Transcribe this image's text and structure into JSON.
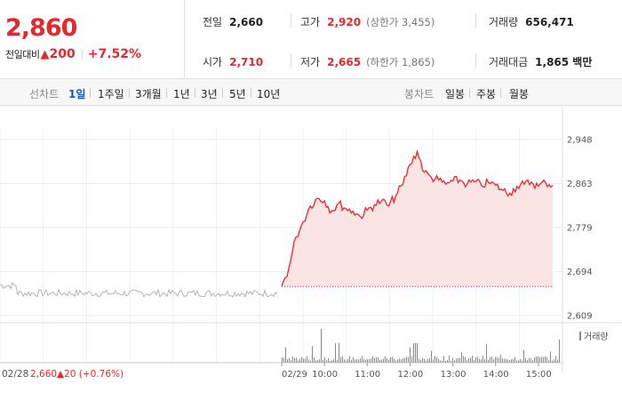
{
  "quote": {
    "price": "2,860",
    "change_label": "전일대비",
    "change_symbol": "▲",
    "change_amount": "200",
    "change_percent": "+7.52%"
  },
  "stats": {
    "prev_close": {
      "label": "전일",
      "value": "2,660"
    },
    "high": {
      "label": "고가",
      "value": "2,920",
      "extra": "(상한가 3,455)"
    },
    "volume": {
      "label": "거래량",
      "value": "656,471"
    },
    "open": {
      "label": "시가",
      "value": "2,710"
    },
    "low": {
      "label": "저가",
      "value": "2,665",
      "extra": "(하한가 1,865)"
    },
    "amount": {
      "label": "거래대금",
      "value": "1,865 백만"
    }
  },
  "toolbar": {
    "line_chart_label": "선차트",
    "periods": [
      "1일",
      "1주일",
      "3개월",
      "1년",
      "3년",
      "5년",
      "10년"
    ],
    "active_period": "1일",
    "candle_chart_label": "봉차트",
    "candles": [
      "일봉",
      "주봉",
      "월봉"
    ]
  },
  "colors": {
    "up": "#e8262d",
    "prev_day_line": "#b4b4b4",
    "area_fill": "#fbe4e4",
    "volume_bar": "#8d7bc8",
    "active_tab": "#1a56b8"
  },
  "chart_data": {
    "type": "line",
    "y_ticks": [
      "2,948",
      "2,863",
      "2,779",
      "2,694",
      "2,609"
    ],
    "ylim": [
      2609,
      2948
    ],
    "x_tick_labels": [
      "02/29",
      "10:00",
      "11:00",
      "12:00",
      "13:00",
      "14:00",
      "15:00"
    ],
    "previous_day": {
      "date": "02/28",
      "close_text": "2,660",
      "change_text": "▲20 (+0.76%)",
      "x": [
        "09:00",
        "15:30"
      ],
      "approx_range": [
        2640,
        2690
      ]
    },
    "series": [
      {
        "x": [
          "09:00",
          "09:10",
          "09:20",
          "09:30",
          "09:40",
          "09:50",
          "10:00",
          "10:10",
          "10:20",
          "10:30",
          "10:40",
          "10:50",
          "11:00",
          "11:10",
          "11:20",
          "11:30",
          "11:40",
          "11:50",
          "12:00",
          "12:10",
          "12:20",
          "12:30",
          "12:40",
          "12:50",
          "13:00",
          "13:10",
          "13:20",
          "13:30",
          "13:40",
          "13:50",
          "14:00",
          "14:10",
          "14:20",
          "14:30",
          "14:40",
          "14:50",
          "15:00",
          "15:10",
          "15:20"
        ],
        "values": [
          2665,
          2700,
          2760,
          2790,
          2820,
          2835,
          2830,
          2810,
          2825,
          2815,
          2810,
          2800,
          2812,
          2822,
          2830,
          2820,
          2840,
          2862,
          2900,
          2925,
          2885,
          2875,
          2870,
          2862,
          2868,
          2870,
          2862,
          2867,
          2860,
          2865,
          2860,
          2850,
          2845,
          2858,
          2862,
          2866,
          2858,
          2866,
          2860
        ]
      }
    ],
    "volume_legend": "거래량",
    "volume_unit_note": "",
    "grid": true
  }
}
